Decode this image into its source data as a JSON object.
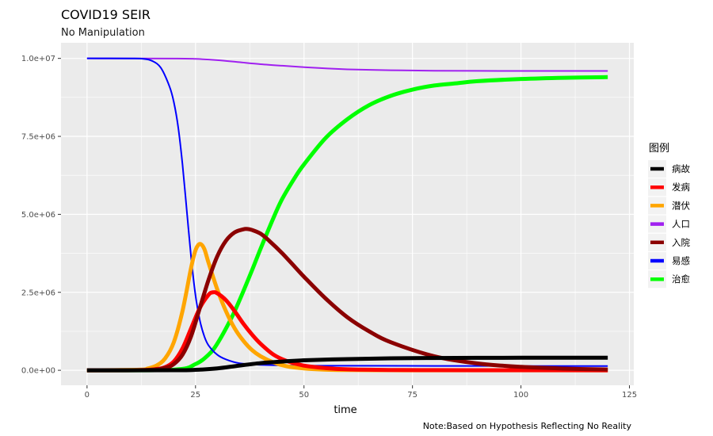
{
  "chart_data": {
    "type": "line",
    "title": "COVID19 SEIR",
    "subtitle": "No Manipulation",
    "xlabel": "time",
    "ylabel": "",
    "caption": "Note:Based on Hypothesis Reflecting No Reality",
    "xlim": [
      -6,
      126
    ],
    "ylim": [
      -480000,
      10500000
    ],
    "x_ticks": [
      0,
      25,
      50,
      75,
      100,
      125
    ],
    "x_tick_labels": [
      "0",
      "25",
      "50",
      "75",
      "100",
      "125"
    ],
    "y_ticks": [
      0,
      2500000,
      5000000,
      7500000,
      10000000
    ],
    "y_tick_labels": [
      "0.0e+00",
      "2.5e+06",
      "5.0e+06",
      "7.5e+06",
      "1.0e+07"
    ],
    "grid": true,
    "legend": {
      "title": "图例",
      "placement": "right",
      "entries": [
        "病故",
        "发病",
        "潜伏",
        "人口",
        "入院",
        "易感",
        "治愈"
      ]
    },
    "series": [
      {
        "name": "病故",
        "color": "#000000",
        "width": 5,
        "x": [
          0,
          20,
          25,
          30,
          35,
          40,
          45,
          50,
          60,
          70,
          80,
          90,
          100,
          110,
          120
        ],
        "y": [
          0,
          3000,
          15000,
          60000,
          150000,
          230000,
          280000,
          320000,
          360000,
          385000,
          395000,
          400000,
          402000,
          403000,
          403000
        ]
      },
      {
        "name": "发病",
        "color": "#FF0000",
        "width": 5,
        "x": [
          0,
          12,
          16,
          18,
          20,
          22,
          24,
          26,
          28,
          29,
          30,
          32,
          34,
          36,
          38,
          40,
          43,
          46,
          50,
          55,
          60,
          70,
          80,
          90,
          100,
          120
        ],
        "y": [
          0,
          5000,
          40000,
          100000,
          280000,
          700000,
          1350000,
          2000000,
          2420000,
          2500000,
          2470000,
          2250000,
          1900000,
          1500000,
          1150000,
          850000,
          500000,
          300000,
          150000,
          70000,
          30000,
          10000,
          5000,
          3000,
          2000,
          1000
        ]
      },
      {
        "name": "潜伏",
        "color": "#FFA500",
        "width": 5,
        "x": [
          0,
          12,
          14,
          16,
          18,
          20,
          22,
          24,
          25,
          26,
          27,
          28,
          30,
          32,
          34,
          36,
          38,
          40,
          43,
          46,
          50,
          55,
          60,
          70,
          80,
          100,
          120
        ],
        "y": [
          0,
          20000,
          60000,
          150000,
          380000,
          900000,
          1900000,
          3300000,
          3850000,
          4050000,
          3900000,
          3450000,
          2600000,
          1900000,
          1350000,
          950000,
          650000,
          450000,
          250000,
          130000,
          60000,
          20000,
          8000,
          2000,
          1000,
          500,
          0
        ]
      },
      {
        "name": "人口",
        "color": "#A020F0",
        "width": 2,
        "x": [
          0,
          20,
          25,
          30,
          35,
          40,
          45,
          50,
          55,
          60,
          70,
          80,
          90,
          100,
          110,
          120
        ],
        "y": [
          10000000,
          9995000,
          9985000,
          9945000,
          9880000,
          9815000,
          9765000,
          9720000,
          9680000,
          9650000,
          9620000,
          9605000,
          9600000,
          9597000,
          9597000,
          9597000
        ]
      },
      {
        "name": "入院",
        "color": "#8B0000",
        "width": 5,
        "x": [
          0,
          14,
          18,
          20,
          22,
          24,
          26,
          28,
          30,
          32,
          34,
          36,
          37,
          38,
          40,
          42,
          45,
          48,
          50,
          55,
          60,
          65,
          70,
          80,
          90,
          100,
          110,
          120
        ],
        "y": [
          0,
          10000,
          80000,
          200000,
          500000,
          1100000,
          2000000,
          2900000,
          3650000,
          4150000,
          4420000,
          4520000,
          4530000,
          4500000,
          4380000,
          4150000,
          3750000,
          3300000,
          3000000,
          2300000,
          1700000,
          1250000,
          900000,
          450000,
          220000,
          110000,
          55000,
          25000
        ]
      },
      {
        "name": "易感",
        "color": "#0000FF",
        "width": 2,
        "x": [
          0,
          10,
          13,
          15,
          17,
          19,
          20,
          21,
          22,
          23,
          24,
          25,
          26,
          27,
          28,
          30,
          32,
          35,
          40,
          50,
          60,
          80,
          100,
          120
        ],
        "y": [
          10000000,
          9998000,
          9985000,
          9920000,
          9700000,
          9100000,
          8600000,
          7800000,
          6600000,
          5100000,
          3600000,
          2400000,
          1600000,
          1100000,
          800000,
          500000,
          350000,
          230000,
          175000,
          150000,
          145000,
          140000,
          138000,
          137000
        ]
      },
      {
        "name": "治愈",
        "color": "#00FF00",
        "width": 5,
        "x": [
          0,
          20,
          25,
          28,
          30,
          33,
          35,
          38,
          40,
          43,
          45,
          48,
          50,
          55,
          60,
          65,
          70,
          75,
          80,
          85,
          90,
          100,
          110,
          120
        ],
        "y": [
          0,
          20000,
          200000,
          500000,
          850000,
          1600000,
          2200000,
          3200000,
          3900000,
          4900000,
          5500000,
          6200000,
          6600000,
          7450000,
          8050000,
          8500000,
          8800000,
          9000000,
          9130000,
          9200000,
          9270000,
          9340000,
          9380000,
          9400000
        ]
      }
    ]
  }
}
